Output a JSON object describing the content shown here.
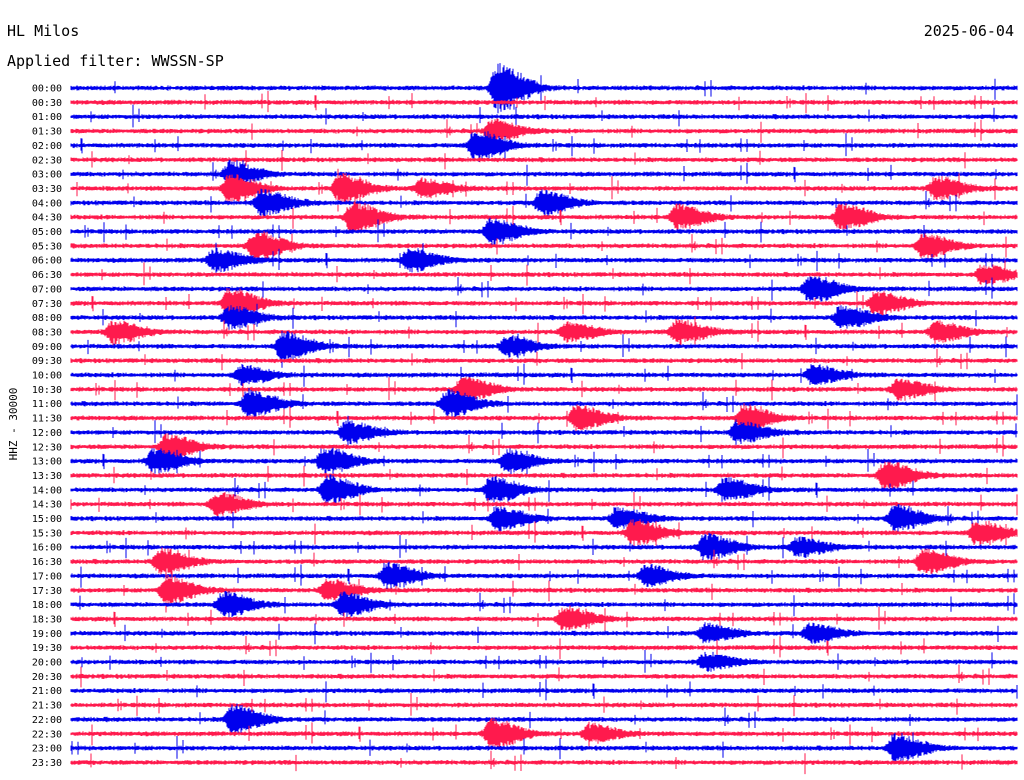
{
  "header": {
    "station": "HL Milos",
    "date": "2025-06-04",
    "filter": "Applied filter: WWSSN-SP"
  },
  "colors": {
    "trace_even": "#0000ee",
    "trace_odd": "#ff1a4d",
    "background": "#ffffff"
  },
  "chart_data": {
    "type": "line",
    "title": "HL Milos",
    "ylabel": "HHZ - 30000",
    "x": {
      "unit": "minutes",
      "range": [
        0,
        30
      ]
    },
    "rows": [
      "00:00",
      "00:30",
      "01:00",
      "01:30",
      "02:00",
      "02:30",
      "03:00",
      "03:30",
      "04:00",
      "04:30",
      "05:00",
      "05:30",
      "06:00",
      "06:30",
      "07:00",
      "07:30",
      "08:00",
      "08:30",
      "09:00",
      "09:30",
      "10:00",
      "10:30",
      "11:00",
      "11:30",
      "12:00",
      "12:30",
      "13:00",
      "13:30",
      "14:00",
      "14:30",
      "15:00",
      "15:30",
      "16:00",
      "16:30",
      "17:00",
      "17:30",
      "18:00",
      "18:30",
      "19:00",
      "19:30",
      "20:00",
      "20:30",
      "21:00",
      "21:30",
      "22:00",
      "22:30",
      "23:00",
      "23:30"
    ],
    "row_colors": [
      "#0000ee",
      "#ff1a4d"
    ],
    "events": [
      {
        "row": "00:00",
        "minute": 13.5,
        "amplitude": 2.6
      },
      {
        "row": "01:30",
        "minute": 13.3,
        "amplitude": 1.2
      },
      {
        "row": "02:00",
        "minute": 12.8,
        "amplitude": 1.6
      },
      {
        "row": "03:00",
        "minute": 5.0,
        "amplitude": 1.3
      },
      {
        "row": "03:30",
        "minute": 5.0,
        "amplitude": 1.5
      },
      {
        "row": "03:30",
        "minute": 8.5,
        "amplitude": 1.5
      },
      {
        "row": "03:30",
        "minute": 11.1,
        "amplitude": 1.0
      },
      {
        "row": "03:30",
        "minute": 27.4,
        "amplitude": 1.2
      },
      {
        "row": "04:00",
        "minute": 6.0,
        "amplitude": 1.4
      },
      {
        "row": "04:00",
        "minute": 14.9,
        "amplitude": 1.3
      },
      {
        "row": "04:30",
        "minute": 8.9,
        "amplitude": 1.6
      },
      {
        "row": "04:30",
        "minute": 19.2,
        "amplitude": 1.3
      },
      {
        "row": "04:30",
        "minute": 24.4,
        "amplitude": 1.4
      },
      {
        "row": "05:00",
        "minute": 13.3,
        "amplitude": 1.4
      },
      {
        "row": "05:30",
        "minute": 5.8,
        "amplitude": 1.6
      },
      {
        "row": "05:30",
        "minute": 27.0,
        "amplitude": 1.3
      },
      {
        "row": "06:00",
        "minute": 4.5,
        "amplitude": 1.2
      },
      {
        "row": "06:00",
        "minute": 10.7,
        "amplitude": 1.2
      },
      {
        "row": "06:30",
        "minute": 28.9,
        "amplitude": 1.0
      },
      {
        "row": "07:00",
        "minute": 23.4,
        "amplitude": 1.4
      },
      {
        "row": "07:30",
        "minute": 5.0,
        "amplitude": 1.6
      },
      {
        "row": "07:30",
        "minute": 25.5,
        "amplitude": 1.3
      },
      {
        "row": "08:00",
        "minute": 5.0,
        "amplitude": 1.2
      },
      {
        "row": "08:00",
        "minute": 24.4,
        "amplitude": 1.3
      },
      {
        "row": "08:30",
        "minute": 1.3,
        "amplitude": 1.2
      },
      {
        "row": "08:30",
        "minute": 15.7,
        "amplitude": 1.0
      },
      {
        "row": "08:30",
        "minute": 19.2,
        "amplitude": 1.3
      },
      {
        "row": "08:30",
        "minute": 27.4,
        "amplitude": 1.1
      },
      {
        "row": "09:00",
        "minute": 6.7,
        "amplitude": 1.6
      },
      {
        "row": "09:00",
        "minute": 13.8,
        "amplitude": 1.0
      },
      {
        "row": "10:00",
        "minute": 5.4,
        "amplitude": 1.0
      },
      {
        "row": "10:00",
        "minute": 23.5,
        "amplitude": 1.0
      },
      {
        "row": "10:30",
        "minute": 12.4,
        "amplitude": 1.3
      },
      {
        "row": "10:30",
        "minute": 26.2,
        "amplitude": 1.1
      },
      {
        "row": "11:00",
        "minute": 5.6,
        "amplitude": 1.5
      },
      {
        "row": "11:00",
        "minute": 11.9,
        "amplitude": 1.4
      },
      {
        "row": "11:30",
        "minute": 16.0,
        "amplitude": 1.3
      },
      {
        "row": "11:30",
        "minute": 21.3,
        "amplitude": 1.4
      },
      {
        "row": "12:00",
        "minute": 8.7,
        "amplitude": 1.1
      },
      {
        "row": "12:00",
        "minute": 21.1,
        "amplitude": 1.2
      },
      {
        "row": "12:30",
        "minute": 3.0,
        "amplitude": 1.3
      },
      {
        "row": "13:00",
        "minute": 2.6,
        "amplitude": 1.3
      },
      {
        "row": "13:00",
        "minute": 8.0,
        "amplitude": 1.4
      },
      {
        "row": "13:00",
        "minute": 13.8,
        "amplitude": 1.2
      },
      {
        "row": "13:30",
        "minute": 25.8,
        "amplitude": 1.5
      },
      {
        "row": "14:00",
        "minute": 8.1,
        "amplitude": 1.5
      },
      {
        "row": "14:00",
        "minute": 13.3,
        "amplitude": 1.4
      },
      {
        "row": "14:00",
        "minute": 20.7,
        "amplitude": 1.2
      },
      {
        "row": "14:30",
        "minute": 4.6,
        "amplitude": 1.2
      },
      {
        "row": "15:00",
        "minute": 13.5,
        "amplitude": 1.3
      },
      {
        "row": "15:00",
        "minute": 17.3,
        "amplitude": 1.2
      },
      {
        "row": "15:00",
        "minute": 26.1,
        "amplitude": 1.4
      },
      {
        "row": "15:30",
        "minute": 17.8,
        "amplitude": 1.4
      },
      {
        "row": "15:30",
        "minute": 28.7,
        "amplitude": 1.3
      },
      {
        "row": "16:00",
        "minute": 20.1,
        "amplitude": 1.4
      },
      {
        "row": "16:00",
        "minute": 23.0,
        "amplitude": 1.0
      },
      {
        "row": "16:30",
        "minute": 2.8,
        "amplitude": 1.4
      },
      {
        "row": "16:30",
        "minute": 27.0,
        "amplitude": 1.4
      },
      {
        "row": "17:00",
        "minute": 10.0,
        "amplitude": 1.4
      },
      {
        "row": "17:00",
        "minute": 18.2,
        "amplitude": 1.1
      },
      {
        "row": "17:30",
        "minute": 3.0,
        "amplitude": 1.5
      },
      {
        "row": "17:30",
        "minute": 8.1,
        "amplitude": 1.1
      },
      {
        "row": "18:00",
        "minute": 4.8,
        "amplitude": 1.3
      },
      {
        "row": "18:00",
        "minute": 8.6,
        "amplitude": 1.3
      },
      {
        "row": "18:30",
        "minute": 15.6,
        "amplitude": 1.3
      },
      {
        "row": "19:00",
        "minute": 20.1,
        "amplitude": 1.0
      },
      {
        "row": "19:00",
        "minute": 23.4,
        "amplitude": 1.0
      },
      {
        "row": "20:00",
        "minute": 20.1,
        "amplitude": 0.9
      },
      {
        "row": "22:00",
        "minute": 5.1,
        "amplitude": 1.6
      },
      {
        "row": "22:30",
        "minute": 13.3,
        "amplitude": 1.6
      },
      {
        "row": "22:30",
        "minute": 16.4,
        "amplitude": 1.0
      },
      {
        "row": "23:00",
        "minute": 26.1,
        "amplitude": 1.5
      }
    ]
  }
}
